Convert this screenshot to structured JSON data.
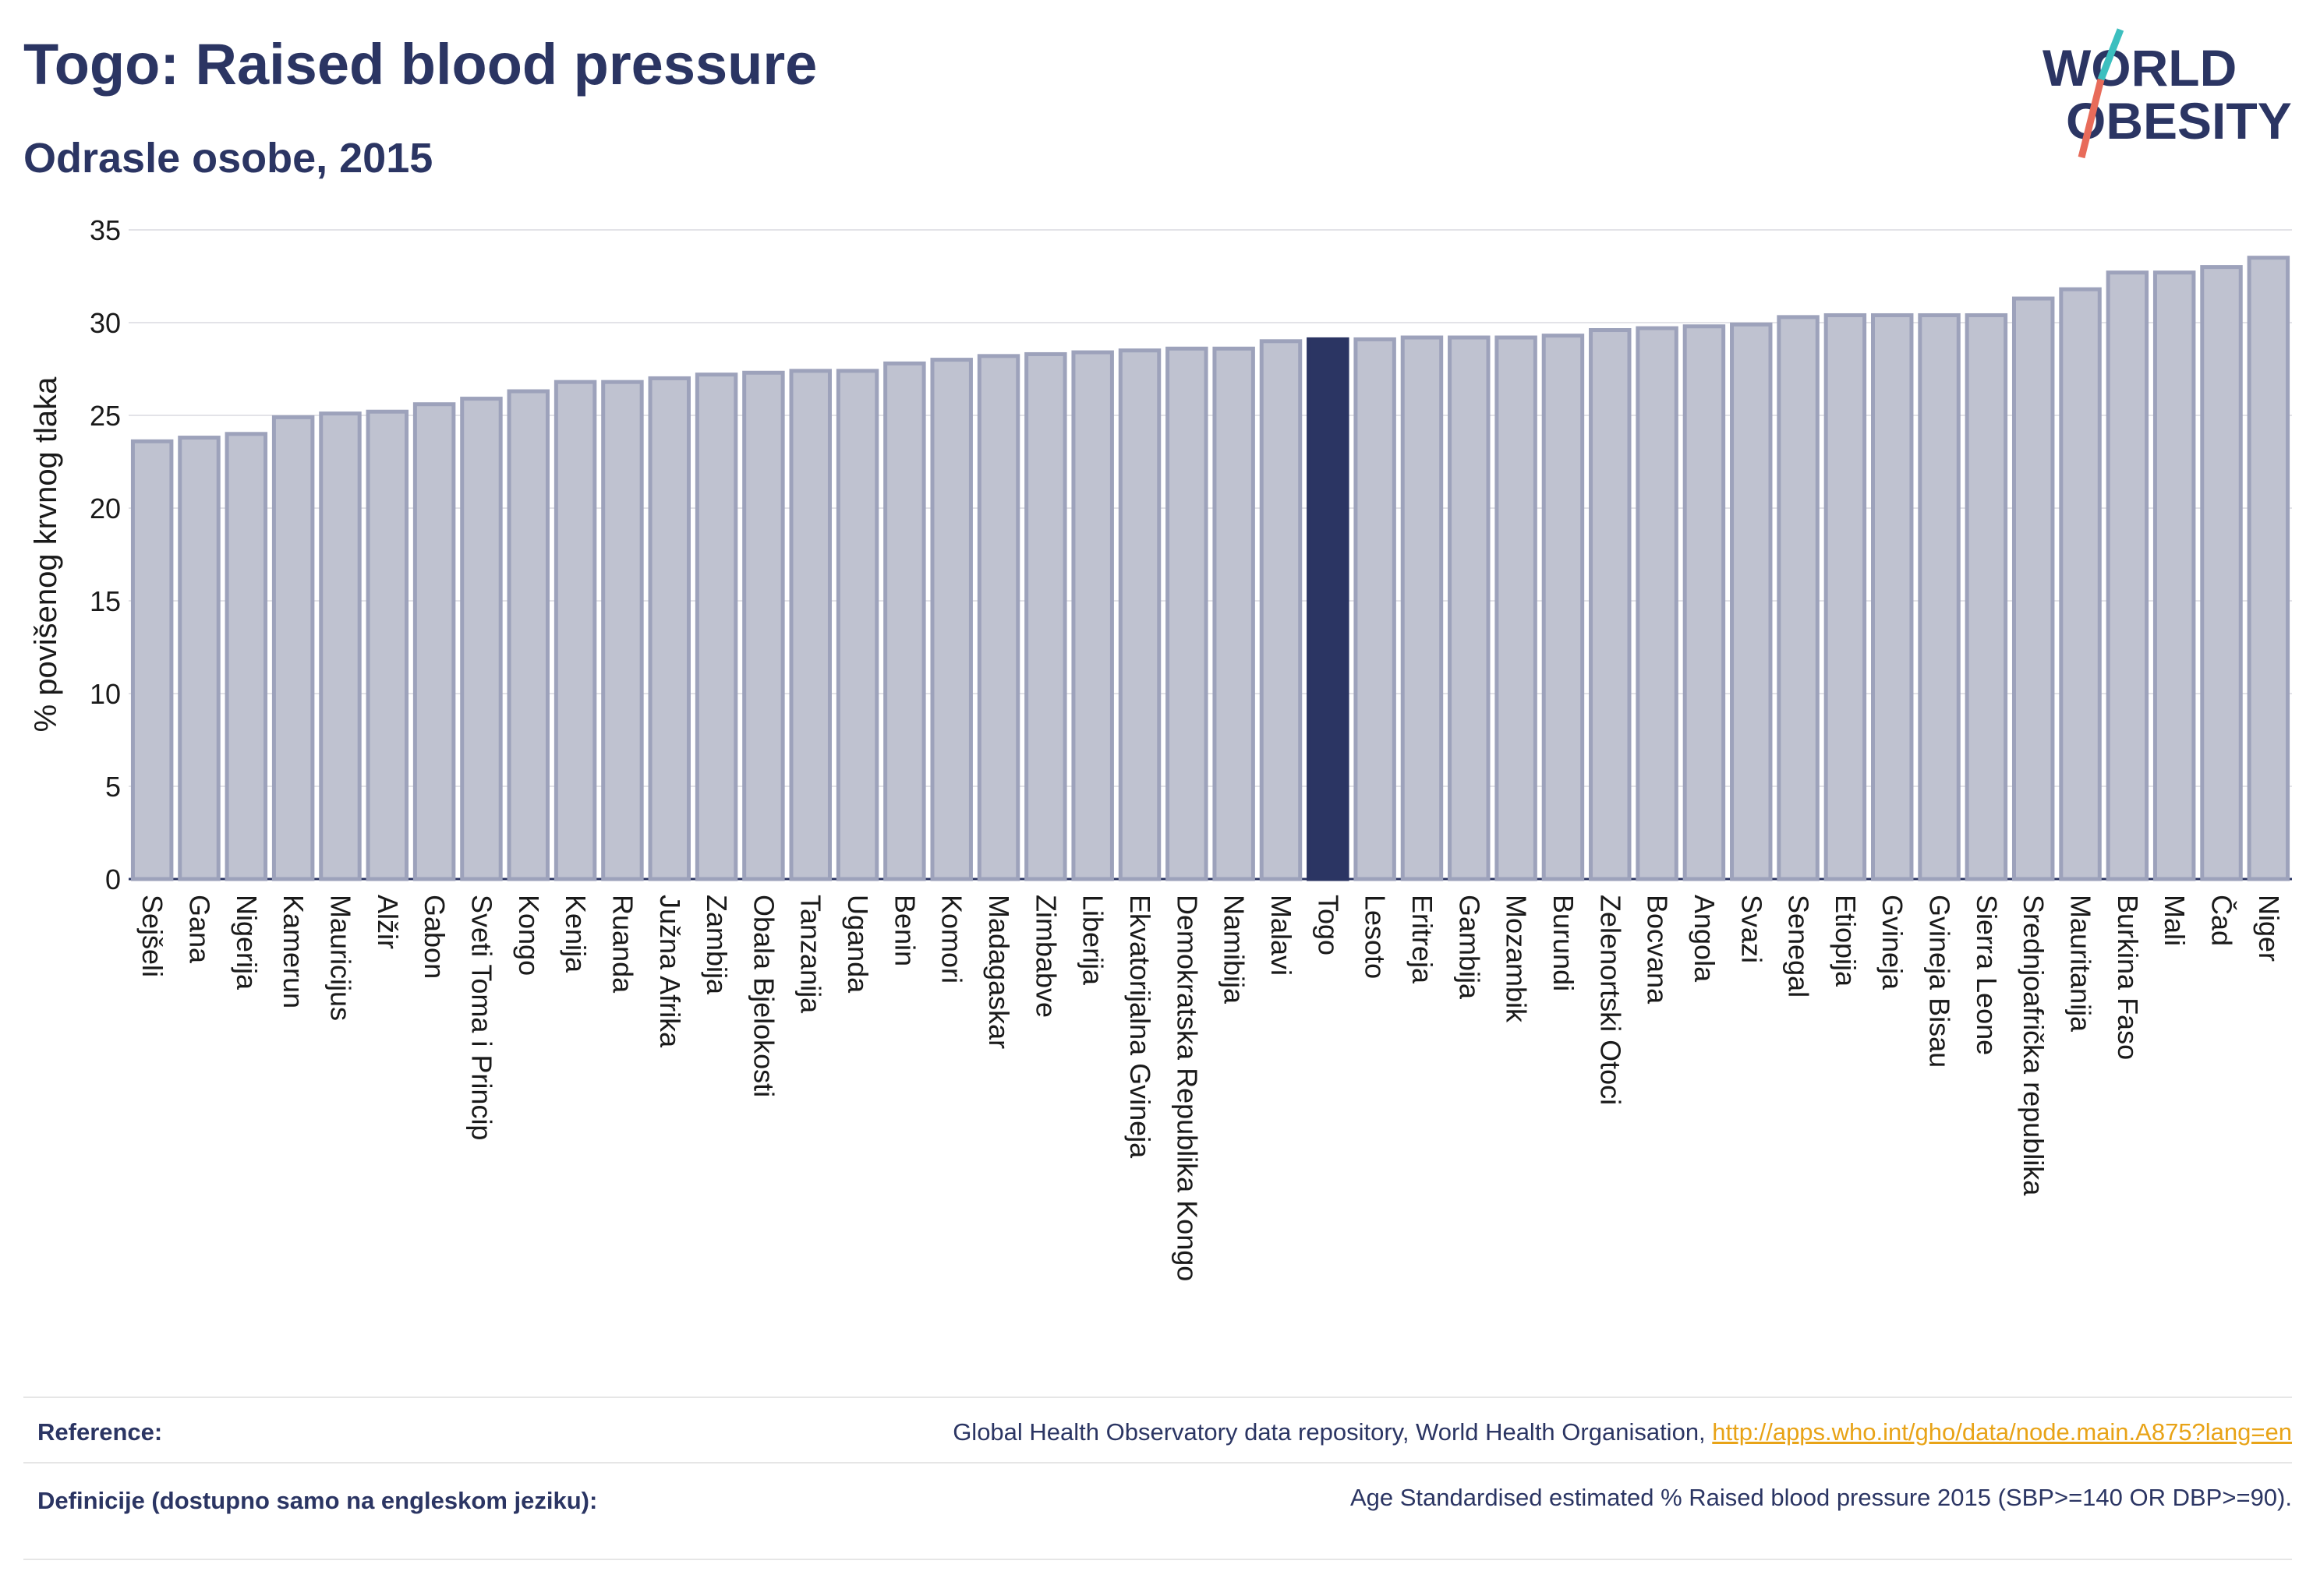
{
  "header": {
    "title": "Togo: Raised blood pressure",
    "subtitle": "Odrasle osobe, 2015",
    "logo_line1": "WORLD",
    "logo_line2": "OBESITY"
  },
  "colors": {
    "bar": "#bfc2d0",
    "bar_border": "#9da2bb",
    "highlight": "#2b3563",
    "grid": "#e3e3e8",
    "logo_slash_top": "#3cbfbf",
    "logo_slash_bottom": "#e86b5a"
  },
  "chart_data": {
    "type": "bar",
    "title": "Togo: Raised blood pressure",
    "subtitle": "Odrasle osobe, 2015",
    "ylabel": "% povišenog krvnog tlaka",
    "xlabel": "",
    "ylim": [
      0,
      35
    ],
    "yticks": [
      0,
      5,
      10,
      15,
      20,
      25,
      30,
      35
    ],
    "grid": true,
    "highlight": "Togo",
    "categories": [
      "Sejšeli",
      "Gana",
      "Nigerija",
      "Kamerun",
      "Mauricijus",
      "Alžir",
      "Gabon",
      "Sveti Toma i Princip",
      "Kongo",
      "Kenija",
      "Ruanda",
      "Južna Afrika",
      "Zambija",
      "Obala Bjelokosti",
      "Tanzanija",
      "Uganda",
      "Benin",
      "Komori",
      "Madagaskar",
      "Zimbabve",
      "Liberija",
      "Ekvatorijalna Gvineja",
      "Demokratska Republika Kongo",
      "Namibija",
      "Malavi",
      "Togo",
      "Lesoto",
      "Eritreja",
      "Gambija",
      "Mozambik",
      "Burundi",
      "Zelenortski Otoci",
      "Bocvana",
      "Angola",
      "Svazi",
      "Senegal",
      "Etiopija",
      "Gvineja",
      "Gvineja Bisau",
      "Sierra Leone",
      "Srednjoafrička republika",
      "Mauritanija",
      "Burkina Faso",
      "Mali",
      "Čad",
      "Niger"
    ],
    "values": [
      23.6,
      23.8,
      24.0,
      24.9,
      25.1,
      25.2,
      25.6,
      25.9,
      26.3,
      26.8,
      26.8,
      27.0,
      27.2,
      27.3,
      27.4,
      27.4,
      27.8,
      28.0,
      28.2,
      28.3,
      28.4,
      28.5,
      28.6,
      28.6,
      29.0,
      29.1,
      29.1,
      29.2,
      29.2,
      29.2,
      29.3,
      29.6,
      29.7,
      29.8,
      29.9,
      30.3,
      30.4,
      30.4,
      30.4,
      30.4,
      31.3,
      31.8,
      32.7,
      32.7,
      33.0,
      33.5
    ]
  },
  "footer": {
    "reference_label": "Reference:",
    "reference_text": "Global Health Observatory data repository, World Health Organisation, ",
    "reference_link": "http://apps.who.int/gho/data/node.main.A875?lang=en",
    "definition_label": "Definicije (dostupno samo na engleskom jeziku):",
    "definition_text": "Age Standardised estimated % Raised blood pressure 2015 (SBP>=140 OR DBP>=90)."
  }
}
